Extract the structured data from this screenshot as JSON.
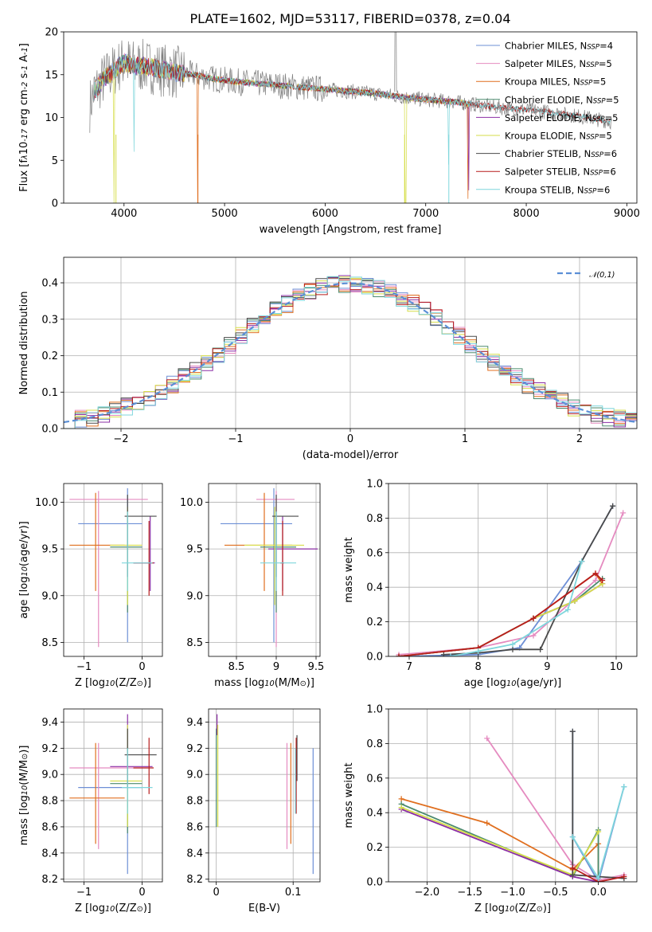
{
  "colors": [
    "#6d8fd6",
    "#e58bc0",
    "#e06f1f",
    "#4b8a6e",
    "#8b2fa5",
    "#d6de49",
    "#4a4a4a",
    "#b71c1c",
    "#7fd6dc"
  ],
  "legend": [
    "Chabrier MILES, N$SSP$=4",
    "Salpeter MILES, N$SSP$=5",
    "Kroupa MILES, N$SSP$=5",
    "Chabrier ELODIE, N$SSP$=5",
    "Salpeter ELODIE, N$SSP$=5",
    "Kroupa ELODIE, N$SSP$=5",
    "Chabrier STELIB, N$SSP$=6",
    "Salpeter STELIB, N$SSP$=6",
    "Kroupa STELIB, N$SSP$=6"
  ],
  "chart_data": [
    {
      "type": "line",
      "title": "PLATE=1602, MJD=53117, FIBERID=0378, z=0.04",
      "xlabel": "wavelength [Angstrom, rest frame]",
      "ylabel": "Flux [f$λ$10$-17$ erg cm$-2$ s$-1$ A$-1$]",
      "xlim": [
        3400,
        9100
      ],
      "ylim": [
        0,
        20
      ],
      "xticks": [
        4000,
        5000,
        6000,
        7000,
        8000,
        9000
      ],
      "yticks": [
        0,
        5,
        10,
        15,
        20
      ],
      "grid": false,
      "legend_loc": "upper right",
      "spectrum_x": [
        3650,
        3700,
        3800,
        3900,
        4000,
        4100,
        4200,
        4300,
        4400,
        4500,
        4700,
        4900,
        5100,
        5300,
        5500,
        5700,
        5900,
        6100,
        6300,
        6500,
        6700,
        6900,
        7100,
        7300,
        7500,
        7700,
        7900,
        8100,
        8300,
        8500,
        8700,
        8850
      ],
      "spectrum_y": [
        11.0,
        13.0,
        14.5,
        15.5,
        16.5,
        16.0,
        16.0,
        15.8,
        15.5,
        15.3,
        15.0,
        14.5,
        14.2,
        14.0,
        13.8,
        13.6,
        13.4,
        13.2,
        13.0,
        12.8,
        12.5,
        12.2,
        12.0,
        11.8,
        11.5,
        11.2,
        11.0,
        10.8,
        10.5,
        10.2,
        9.8,
        9.5
      ]
    },
    {
      "type": "histogram",
      "xlabel": "(data-model)/error",
      "ylabel": "Normed distribution",
      "xlim": [
        -2.5,
        2.5
      ],
      "ylim": [
        0,
        0.47
      ],
      "xticks": [
        -2,
        -1,
        0,
        1,
        2
      ],
      "yticks": [
        0.0,
        0.1,
        0.2,
        0.3,
        0.4
      ],
      "grid": true,
      "reference_label": "$𝒩(0,1)$",
      "legend_loc": "upper right"
    },
    {
      "type": "scatter",
      "xlabel": "Z [log$10$(Z/Z$⊙$)]",
      "ylabel": "age  [log$10$(age/yr)]",
      "xlim": [
        -1.35,
        0.35
      ],
      "ylim": [
        8.35,
        10.2
      ],
      "xticks": [
        -1,
        0
      ],
      "yticks": [
        8.5,
        9.0,
        9.5,
        10.0
      ],
      "grid": true,
      "points": [
        {
          "x": -0.25,
          "y": 9.77,
          "xe": [
            -1.1,
            0.0
          ],
          "ye": [
            8.5,
            10.15
          ]
        },
        {
          "x": -0.75,
          "y": 10.03,
          "xe": [
            -1.25,
            0.1
          ],
          "ye": [
            8.45,
            10.12
          ]
        },
        {
          "x": -0.8,
          "y": 9.54,
          "xe": [
            -1.25,
            -0.3
          ],
          "ye": [
            9.05,
            10.1
          ]
        },
        {
          "x": -0.25,
          "y": 9.52,
          "xe": [
            -0.55,
            0.0
          ],
          "ye": [
            8.82,
            9.9
          ]
        },
        {
          "x": 0.14,
          "y": 9.35,
          "xe": [
            -0.15,
            0.22
          ],
          "ye": [
            9.05,
            9.85
          ]
        },
        {
          "x": -0.25,
          "y": 9.54,
          "xe": [
            -0.55,
            0.0
          ],
          "ye": [
            8.9,
            9.95
          ]
        },
        {
          "x": -0.25,
          "y": 9.85,
          "xe": [
            -0.3,
            0.25
          ],
          "ye": [
            9.2,
            10.08
          ]
        },
        {
          "x": 0.12,
          "y": 9.35,
          "xe": [
            -0.15,
            0.2
          ],
          "ye": [
            9.0,
            9.8
          ]
        },
        {
          "x": -0.25,
          "y": 9.35,
          "xe": [
            -0.35,
            0.18
          ],
          "ye": [
            9.05,
            9.9
          ]
        }
      ]
    },
    {
      "type": "scatter",
      "xlabel": "mass [log$10$(M/M$⊙$)]",
      "xlim": [
        8.15,
        9.55
      ],
      "ylim": [
        8.35,
        10.2
      ],
      "xticks": [
        8.5,
        9.0,
        9.5
      ],
      "yticks": [
        8.5,
        9.0,
        9.5,
        10.0
      ],
      "grid": true,
      "points": [
        {
          "x": 8.97,
          "y": 9.77,
          "xe": [
            8.3,
            9.2
          ],
          "ye": [
            8.5,
            10.15
          ]
        },
        {
          "x": 9.0,
          "y": 10.03,
          "xe": [
            8.75,
            9.23
          ],
          "ye": [
            8.45,
            10.12
          ]
        },
        {
          "x": 8.85,
          "y": 9.54,
          "xe": [
            8.35,
            9.2
          ],
          "ye": [
            9.05,
            10.1
          ]
        },
        {
          "x": 9.0,
          "y": 9.52,
          "xe": [
            8.8,
            9.25
          ],
          "ye": [
            8.82,
            9.9
          ]
        },
        {
          "x": 9.08,
          "y": 9.5,
          "xe": [
            8.9,
            9.52
          ],
          "ye": [
            9.05,
            9.85
          ]
        },
        {
          "x": 8.98,
          "y": 9.54,
          "xe": [
            8.6,
            9.35
          ],
          "ye": [
            8.9,
            9.95
          ]
        },
        {
          "x": 9.0,
          "y": 9.85,
          "xe": [
            8.95,
            9.28
          ],
          "ye": [
            9.2,
            10.08
          ]
        },
        {
          "x": 9.08,
          "y": 9.35,
          "xe": [
            9.05,
            9.1
          ],
          "ye": [
            9.0,
            9.8
          ]
        },
        {
          "x": 9.0,
          "y": 9.35,
          "xe": [
            8.8,
            9.25
          ],
          "ye": [
            9.05,
            9.9
          ]
        }
      ]
    },
    {
      "type": "line",
      "xlabel": "age  [log$10$(age/yr)]",
      "ylabel": "mass weight",
      "xlim": [
        6.7,
        10.3
      ],
      "ylim": [
        0,
        1.0
      ],
      "xticks": [
        7,
        8,
        9,
        10
      ],
      "yticks": [
        0.0,
        0.2,
        0.4,
        0.6,
        0.8,
        1.0
      ],
      "grid": true,
      "series": [
        {
          "x": [
            6.85,
            8.0,
            8.6,
            9.5,
            9.95
          ],
          "y": [
            0.005,
            0.01,
            0.05,
            0.55,
            0.87
          ]
        },
        {
          "x": 6.85,
          "y": 0
        }
      ],
      "series_xy": [
        [
          [
            6.85,
            0.0
          ],
          [
            8.0,
            0.01
          ],
          [
            8.6,
            0.05
          ],
          [
            9.5,
            0.55
          ],
          [
            9.95,
            0.87
          ]
        ],
        [
          [
            6.85,
            0.01
          ],
          [
            8.0,
            0.05
          ],
          [
            8.8,
            0.12
          ],
          [
            9.7,
            0.44
          ],
          [
            10.1,
            0.83
          ]
        ],
        [
          [
            6.85,
            0.0
          ],
          [
            8.0,
            0.05
          ],
          [
            8.8,
            0.22
          ],
          [
            9.7,
            0.48
          ],
          [
            9.8,
            0.42
          ]
        ],
        [
          [
            6.85,
            0.0
          ],
          [
            8.0,
            0.05
          ],
          [
            8.8,
            0.22
          ],
          [
            9.4,
            0.32
          ],
          [
            9.8,
            0.45
          ]
        ],
        [
          [
            6.85,
            0.0
          ],
          [
            8.0,
            0.05
          ],
          [
            8.8,
            0.22
          ],
          [
            9.4,
            0.32
          ],
          [
            9.8,
            0.42
          ]
        ],
        [
          [
            6.85,
            0.0
          ],
          [
            8.0,
            0.05
          ],
          [
            8.8,
            0.22
          ],
          [
            9.4,
            0.32
          ],
          [
            9.8,
            0.42
          ]
        ],
        [
          [
            7.5,
            0.01
          ],
          [
            8.0,
            0.02
          ],
          [
            8.5,
            0.04
          ],
          [
            8.9,
            0.04
          ],
          [
            9.5,
            0.55
          ],
          [
            9.95,
            0.87
          ]
        ],
        [
          [
            6.85,
            0.0
          ],
          [
            8.0,
            0.05
          ],
          [
            8.8,
            0.22
          ],
          [
            9.7,
            0.48
          ],
          [
            9.8,
            0.44
          ]
        ],
        [
          [
            7.6,
            0.0
          ],
          [
            8.0,
            0.03
          ],
          [
            8.5,
            0.07
          ],
          [
            9.3,
            0.27
          ],
          [
            9.5,
            0.55
          ]
        ]
      ]
    },
    {
      "type": "scatter",
      "xlabel": "Z [log$10$(Z/Z$⊙$)]",
      "ylabel": "mass [log$10$(M/M$⊙$)]",
      "xlim": [
        -1.35,
        0.35
      ],
      "ylim": [
        8.18,
        9.5
      ],
      "xticks": [
        -1,
        0
      ],
      "yticks": [
        8.2,
        8.4,
        8.6,
        8.8,
        9.0,
        9.2,
        9.4
      ],
      "grid": true,
      "points": [
        {
          "x": -0.25,
          "y": 8.9,
          "xe": [
            -1.1,
            0.0
          ],
          "ye": [
            8.24,
            9.25
          ]
        },
        {
          "x": -0.75,
          "y": 9.05,
          "xe": [
            -1.25,
            0.1
          ],
          "ye": [
            8.43,
            9.24
          ]
        },
        {
          "x": -0.8,
          "y": 8.82,
          "xe": [
            -1.25,
            -0.3
          ],
          "ye": [
            8.47,
            9.24
          ]
        },
        {
          "x": -0.25,
          "y": 8.93,
          "xe": [
            -0.55,
            0.0
          ],
          "ye": [
            8.55,
            9.35
          ]
        },
        {
          "x": -0.25,
          "y": 9.06,
          "xe": [
            -0.55,
            0.18
          ],
          "ye": [
            8.75,
            9.46
          ]
        },
        {
          "x": -0.25,
          "y": 8.95,
          "xe": [
            -0.55,
            0.0
          ],
          "ye": [
            8.6,
            9.38
          ]
        },
        {
          "x": -0.25,
          "y": 9.15,
          "xe": [
            -0.3,
            0.25
          ],
          "ye": [
            8.9,
            9.35
          ]
        },
        {
          "x": 0.12,
          "y": 9.05,
          "xe": [
            -0.15,
            0.2
          ],
          "ye": [
            8.85,
            9.28
          ]
        },
        {
          "x": -0.25,
          "y": 8.9,
          "xe": [
            -0.35,
            0.18
          ],
          "ye": [
            8.7,
            9.2
          ]
        }
      ]
    },
    {
      "type": "scatter",
      "xlabel": "E(B-V)",
      "xlim": [
        -0.01,
        0.135
      ],
      "ylim": [
        8.18,
        9.5
      ],
      "xticks": [
        0.0,
        0.1
      ],
      "yticks": [
        8.2,
        8.4,
        8.6,
        8.8,
        9.0,
        9.2,
        9.4
      ],
      "grid": true,
      "points": [
        {
          "x": 0.126,
          "y": 8.9,
          "ye": [
            8.24,
            9.2
          ]
        },
        {
          "x": 0.092,
          "y": 9.05,
          "ye": [
            8.43,
            9.24
          ]
        },
        {
          "x": 0.097,
          "y": 8.82,
          "ye": [
            8.47,
            9.24
          ]
        },
        {
          "x": 0.0,
          "y": 8.93,
          "ye": [
            8.6,
            9.35
          ]
        },
        {
          "x": 0.001,
          "y": 9.06,
          "ye": [
            9.3,
            9.46
          ]
        },
        {
          "x": 0.002,
          "y": 8.95,
          "ye": [
            8.6,
            9.38
          ]
        },
        {
          "x": 0.105,
          "y": 9.15,
          "ye": [
            8.95,
            9.3
          ]
        },
        {
          "x": 0.104,
          "y": 9.05,
          "ye": [
            8.7,
            9.28
          ]
        },
        {
          "x": 0.103,
          "y": 8.9,
          "ye": [
            8.7,
            9.2
          ]
        }
      ]
    },
    {
      "type": "line",
      "xlabel": "Z [log$10$(Z/Z$⊙$)]",
      "ylabel": "mass weight",
      "xlim": [
        -2.45,
        0.45
      ],
      "ylim": [
        0,
        1.0
      ],
      "xticks": [
        -2.0,
        -1.5,
        -1.0,
        -0.5,
        0.0
      ],
      "yticks": [
        0.0,
        0.2,
        0.4,
        0.6,
        0.8,
        1.0
      ],
      "grid": true,
      "series_xy": [
        [
          [
            -0.3,
            0.87
          ],
          [
            -0.3,
            0.26
          ],
          [
            0.0,
            0.0
          ],
          [
            0.3,
            0.55
          ]
        ],
        [
          [
            -1.3,
            0.83
          ],
          [
            -0.3,
            0.1
          ],
          [
            0.0,
            0.01
          ],
          [
            0.3,
            0.04
          ]
        ],
        [
          [
            -2.3,
            0.48
          ],
          [
            -1.3,
            0.34
          ],
          [
            -0.3,
            0.07
          ],
          [
            0.0,
            0.22
          ],
          [
            0.0,
            0.0
          ]
        ],
        [
          [
            -2.3,
            0.45
          ],
          [
            -0.3,
            0.03
          ],
          [
            0.0,
            0.3
          ],
          [
            0.0,
            0.0
          ]
        ],
        [
          [
            -2.3,
            0.42
          ],
          [
            -0.3,
            0.03
          ],
          [
            0.0,
            0.0
          ]
        ],
        [
          [
            -2.3,
            0.43
          ],
          [
            -0.3,
            0.04
          ],
          [
            0.0,
            0.29
          ]
        ],
        [
          [
            -0.3,
            0.87
          ],
          [
            -0.3,
            0.04
          ],
          [
            0.3,
            0.02
          ]
        ],
        [
          [
            -0.3,
            0.08
          ],
          [
            0.0,
            0.0
          ],
          [
            0.3,
            0.03
          ]
        ],
        [
          [
            -0.3,
            0.26
          ],
          [
            0.0,
            0.02
          ],
          [
            0.3,
            0.55
          ]
        ]
      ]
    }
  ]
}
